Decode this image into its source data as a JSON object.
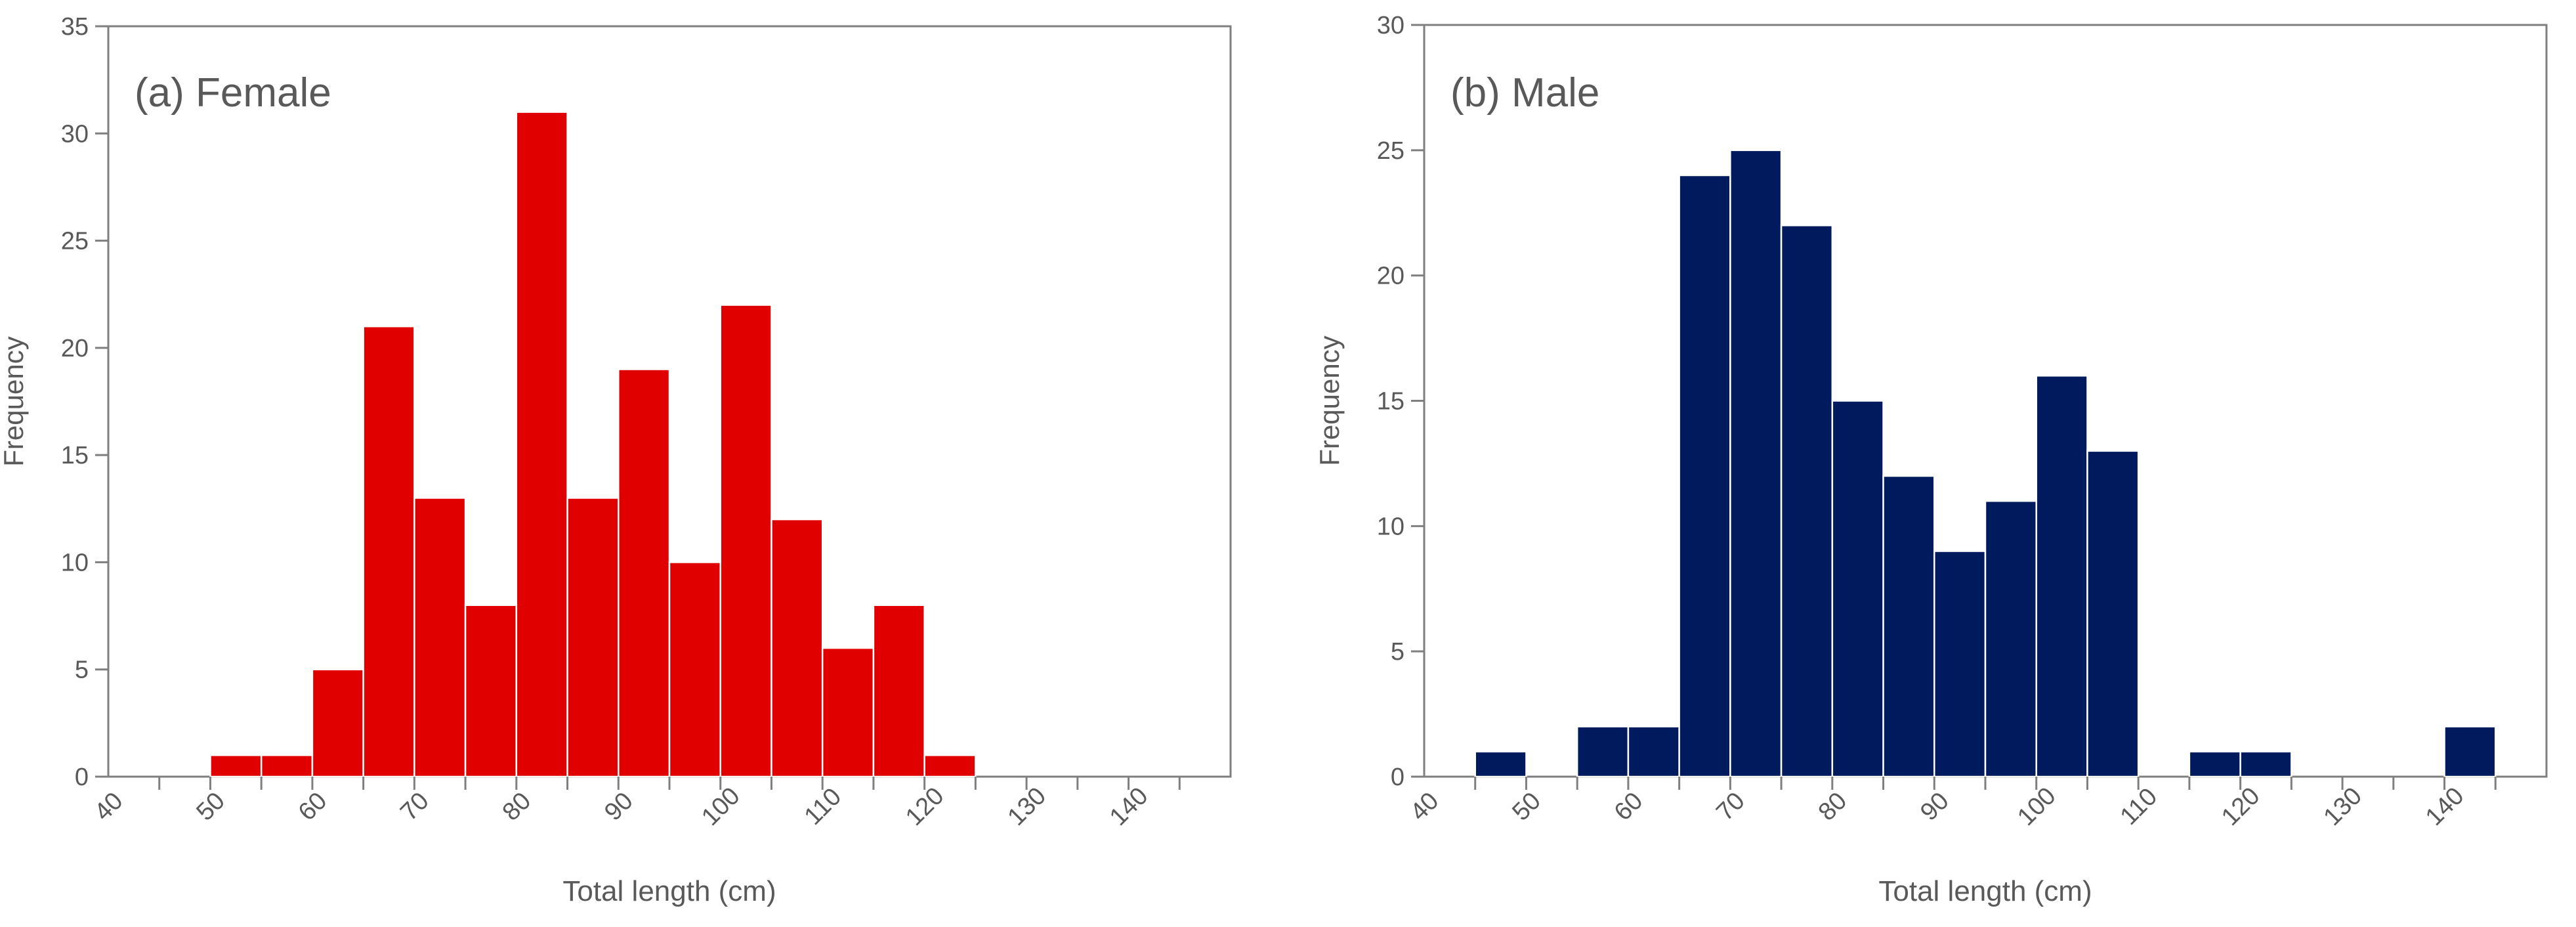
{
  "chart_data": [
    {
      "type": "bar",
      "title": "(a) Female",
      "xlabel": "Total length (cm)",
      "ylabel": "Frequency",
      "bin_width": 5,
      "x_tick_labels": [
        "40",
        "50",
        "60",
        "70",
        "80",
        "90",
        "100",
        "110",
        "120",
        "130",
        "140"
      ],
      "ylim": [
        0,
        35
      ],
      "y_ticks": [
        0,
        5,
        10,
        15,
        20,
        25,
        30,
        35
      ],
      "bar_color": "#e00000",
      "bins": [
        {
          "start": 40,
          "value": 0
        },
        {
          "start": 45,
          "value": 0
        },
        {
          "start": 50,
          "value": 1
        },
        {
          "start": 55,
          "value": 1
        },
        {
          "start": 60,
          "value": 5
        },
        {
          "start": 65,
          "value": 21
        },
        {
          "start": 70,
          "value": 13
        },
        {
          "start": 75,
          "value": 8
        },
        {
          "start": 80,
          "value": 31
        },
        {
          "start": 85,
          "value": 13
        },
        {
          "start": 90,
          "value": 19
        },
        {
          "start": 95,
          "value": 10
        },
        {
          "start": 100,
          "value": 22
        },
        {
          "start": 105,
          "value": 12
        },
        {
          "start": 110,
          "value": 6
        },
        {
          "start": 115,
          "value": 8
        },
        {
          "start": 120,
          "value": 1
        },
        {
          "start": 125,
          "value": 0
        },
        {
          "start": 130,
          "value": 0
        },
        {
          "start": 135,
          "value": 0
        },
        {
          "start": 140,
          "value": 0
        },
        {
          "start": 145,
          "value": 0
        }
      ]
    },
    {
      "type": "bar",
      "title": "(b) Male",
      "xlabel": "Total length (cm)",
      "ylabel": "Frequency",
      "bin_width": 5,
      "x_tick_labels": [
        "40",
        "50",
        "60",
        "70",
        "80",
        "90",
        "100",
        "110",
        "120",
        "130",
        "140"
      ],
      "ylim": [
        0,
        30
      ],
      "y_ticks": [
        0,
        5,
        10,
        15,
        20,
        25,
        30
      ],
      "bar_color": "#001a5e",
      "bins": [
        {
          "start": 40,
          "value": 0
        },
        {
          "start": 45,
          "value": 1
        },
        {
          "start": 50,
          "value": 0
        },
        {
          "start": 55,
          "value": 2
        },
        {
          "start": 60,
          "value": 2
        },
        {
          "start": 65,
          "value": 24
        },
        {
          "start": 70,
          "value": 25
        },
        {
          "start": 75,
          "value": 22
        },
        {
          "start": 80,
          "value": 15
        },
        {
          "start": 85,
          "value": 12
        },
        {
          "start": 90,
          "value": 9
        },
        {
          "start": 95,
          "value": 11
        },
        {
          "start": 100,
          "value": 16
        },
        {
          "start": 105,
          "value": 13
        },
        {
          "start": 110,
          "value": 0
        },
        {
          "start": 115,
          "value": 1
        },
        {
          "start": 120,
          "value": 1
        },
        {
          "start": 125,
          "value": 0
        },
        {
          "start": 130,
          "value": 0
        },
        {
          "start": 135,
          "value": 0
        },
        {
          "start": 140,
          "value": 2
        },
        {
          "start": 145,
          "value": 0
        }
      ]
    }
  ]
}
